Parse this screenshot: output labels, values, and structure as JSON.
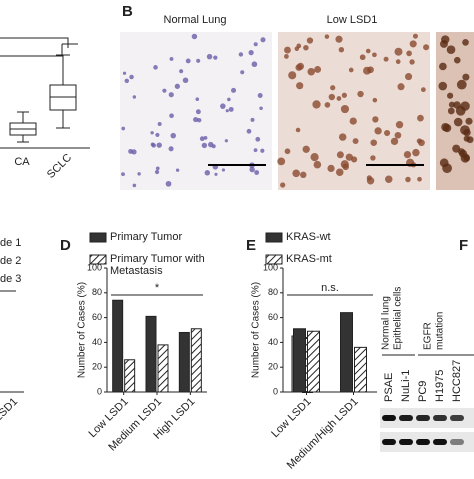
{
  "panels": {
    "b": "B",
    "d": "D",
    "e": "E",
    "f": "F"
  },
  "panel_a": {
    "categories": [
      "CA",
      "SCLC"
    ]
  },
  "panel_b": {
    "labels": [
      "Normal Lung",
      "Low LSD1"
    ]
  },
  "panel_c": {
    "legend": [
      "de 1",
      "de 2",
      "de 3"
    ],
    "category": "LSD1"
  },
  "chart_data": [
    {
      "type": "bar",
      "y_label": "Number of Cases (%)",
      "categories": [
        "Low LSD1",
        "Medium LSD1",
        "High LSD1"
      ],
      "series": [
        {
          "name": "Primary Tumor",
          "color": "#333333",
          "hatch": false,
          "values": [
            74,
            61,
            48
          ]
        },
        {
          "name": "Primary Tumor with Metastasis",
          "color": "#ffffff",
          "hatch": true,
          "values": [
            26,
            38,
            51
          ]
        }
      ],
      "ylim": [
        0,
        100
      ],
      "yticks": [
        0,
        20,
        40,
        60,
        80,
        100
      ],
      "annotation": "*"
    },
    {
      "type": "bar",
      "y_label": "Number of Cases (%)",
      "categories": [
        "Low LSD1",
        "Medium/High LSD1"
      ],
      "series": [
        {
          "name": "KRAS-wt",
          "color": "#333333",
          "hatch": false,
          "values": [
            51,
            64
          ]
        },
        {
          "name": "KRAS-mt",
          "color": "#ffffff",
          "hatch": true,
          "values": [
            49,
            36
          ]
        }
      ],
      "ylim": [
        0,
        100
      ],
      "yticks": [
        0,
        20,
        40,
        60,
        80,
        100
      ],
      "annotation": "n.s."
    }
  ],
  "panel_f": {
    "group_labels": [
      [
        "Normal lung",
        "Epithelial cells"
      ],
      [
        "EGFR",
        "mutation"
      ]
    ],
    "lanes": [
      "PSAE",
      "NuLi-1",
      "PC9",
      "H1975",
      "HCC827"
    ]
  }
}
